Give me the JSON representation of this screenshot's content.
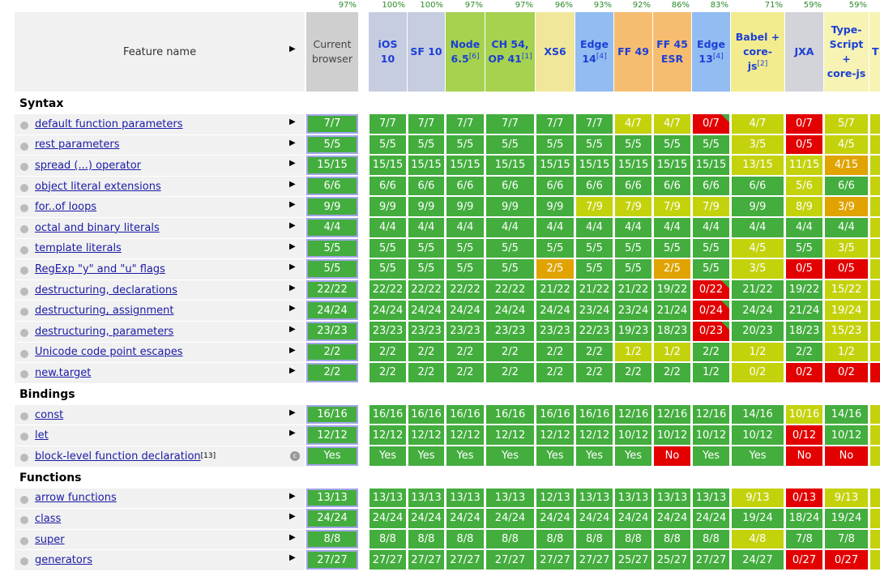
{
  "header": {
    "feature_label": "Feature name"
  },
  "palette": {
    "g": "#43ad3e",
    "l": "#c4d20c",
    "o": "#e0a300",
    "r": "#e20000",
    "R": "#e20000"
  },
  "columns": [
    {
      "name": "Current browser",
      "percent": "97%",
      "color": "#cfcfcf"
    },
    {
      "name": "iOS 10",
      "percent": "100%",
      "color": "#c7cde0"
    },
    {
      "name": "SF 10",
      "percent": "100%",
      "color": "#c7cde0"
    },
    {
      "name": "Node 6.5",
      "note": "[6]",
      "percent": "97%",
      "color": "#a6d24f"
    },
    {
      "name": "CH 54, OP 41",
      "note": "[1]",
      "percent": "97%",
      "color": "#a6d24f"
    },
    {
      "name": "XS6",
      "percent": "96%",
      "color": "#f0e79a"
    },
    {
      "name": "Edge 14",
      "note": "[4]",
      "percent": "93%",
      "color": "#92bcf2"
    },
    {
      "name": "FF 49",
      "percent": "92%",
      "color": "#f6bd70"
    },
    {
      "name": "FF 45 ESR",
      "percent": "86%",
      "color": "#f6bd70"
    },
    {
      "name": "Edge 13",
      "note": "[4]",
      "percent": "83%",
      "color": "#92bcf2"
    },
    {
      "name": "Babel + core-js",
      "note": "[2]",
      "percent": "71%",
      "color": "#f2ec8e"
    },
    {
      "name": "JXA",
      "percent": "59%",
      "color": "#d3d3da"
    },
    {
      "name": "Type-Script + core-js",
      "percent": "59%",
      "color": "#f6f3b4"
    }
  ],
  "cut_column": {
    "name": "T",
    "color": "#f6f3b4"
  },
  "sections": [
    {
      "title": "Syntax",
      "rows": [
        {
          "feature": "default function parameters",
          "cells": [
            "7/7",
            "7/7",
            "7/7",
            "7/7",
            "7/7",
            "7/7",
            "7/7",
            "4/7",
            "4/7",
            "0/7",
            "4/7",
            "0/7",
            "5/7"
          ],
          "levels": "gggggggllRlrll"
        },
        {
          "feature": "rest parameters",
          "cells": [
            "5/5",
            "5/5",
            "5/5",
            "5/5",
            "5/5",
            "5/5",
            "5/5",
            "5/5",
            "5/5",
            "5/5",
            "3/5",
            "0/5",
            "4/5"
          ],
          "levels": "gggggggggglrll"
        },
        {
          "feature": "spread (...) operator",
          "cells": [
            "15/15",
            "15/15",
            "15/15",
            "15/15",
            "15/15",
            "15/15",
            "15/15",
            "15/15",
            "15/15",
            "15/15",
            "13/15",
            "11/15",
            "4/15"
          ],
          "levels": "ggggggggggllol"
        },
        {
          "feature": "object literal extensions",
          "cells": [
            "6/6",
            "6/6",
            "6/6",
            "6/6",
            "6/6",
            "6/6",
            "6/6",
            "6/6",
            "6/6",
            "6/6",
            "6/6",
            "5/6",
            "6/6"
          ],
          "levels": "ggggggggggglgl"
        },
        {
          "feature": "for..of loops",
          "cells": [
            "9/9",
            "9/9",
            "9/9",
            "9/9",
            "9/9",
            "9/9",
            "7/9",
            "7/9",
            "7/9",
            "7/9",
            "9/9",
            "8/9",
            "3/9"
          ],
          "levels": "ggggggllllglol"
        },
        {
          "feature": "octal and binary literals",
          "cells": [
            "4/4",
            "4/4",
            "4/4",
            "4/4",
            "4/4",
            "4/4",
            "4/4",
            "4/4",
            "4/4",
            "4/4",
            "4/4",
            "4/4",
            "4/4"
          ],
          "levels": "gggggggggggggl"
        },
        {
          "feature": "template literals",
          "cells": [
            "5/5",
            "5/5",
            "5/5",
            "5/5",
            "5/5",
            "5/5",
            "5/5",
            "5/5",
            "5/5",
            "5/5",
            "4/5",
            "5/5",
            "3/5"
          ],
          "levels": "gggggggggglgll"
        },
        {
          "feature": "RegExp \"y\" and \"u\" flags",
          "cells": [
            "5/5",
            "5/5",
            "5/5",
            "5/5",
            "5/5",
            "2/5",
            "5/5",
            "5/5",
            "2/5",
            "5/5",
            "3/5",
            "0/5",
            "0/5"
          ],
          "levels": "gggggoggoglrrl"
        },
        {
          "feature": "destructuring, declarations",
          "cells": [
            "22/22",
            "22/22",
            "22/22",
            "22/22",
            "22/22",
            "21/22",
            "21/22",
            "21/22",
            "19/22",
            "0/22",
            "21/22",
            "19/22",
            "15/22"
          ],
          "levels": "gggggggggRggll"
        },
        {
          "feature": "destructuring, assignment",
          "cells": [
            "24/24",
            "24/24",
            "24/24",
            "24/24",
            "24/24",
            "24/24",
            "23/24",
            "23/24",
            "21/24",
            "0/24",
            "24/24",
            "21/24",
            "19/24"
          ],
          "levels": "gggggggggRggll"
        },
        {
          "feature": "destructuring, parameters",
          "cells": [
            "23/23",
            "23/23",
            "23/23",
            "23/23",
            "23/23",
            "23/23",
            "22/23",
            "19/23",
            "18/23",
            "0/23",
            "20/23",
            "18/23",
            "15/23"
          ],
          "levels": "gggggggggRggll"
        },
        {
          "feature": "Unicode code point escapes",
          "cells": [
            "2/2",
            "2/2",
            "2/2",
            "2/2",
            "2/2",
            "2/2",
            "2/2",
            "1/2",
            "1/2",
            "2/2",
            "1/2",
            "2/2",
            "1/2"
          ],
          "levels": "gggggggllglgll"
        },
        {
          "feature": "new.target",
          "cells": [
            "2/2",
            "2/2",
            "2/2",
            "2/2",
            "2/2",
            "2/2",
            "2/2",
            "2/2",
            "2/2",
            "1/2",
            "0/2",
            "0/2",
            "0/2"
          ],
          "levels": "gggggggggglrrrl"
        }
      ]
    },
    {
      "title": "Bindings",
      "rows": [
        {
          "feature": "const",
          "cells": [
            "16/16",
            "16/16",
            "16/16",
            "16/16",
            "16/16",
            "16/16",
            "16/16",
            "12/16",
            "12/16",
            "12/16",
            "14/16",
            "10/16",
            "14/16"
          ],
          "levels": "ggggggggggglgl"
        },
        {
          "feature": "let",
          "cells": [
            "12/12",
            "12/12",
            "12/12",
            "12/12",
            "12/12",
            "12/12",
            "12/12",
            "10/12",
            "10/12",
            "10/12",
            "10/12",
            "0/12",
            "10/12"
          ],
          "levels": "gggggggggggrgl"
        },
        {
          "feature": "block-level function declaration",
          "note": "[13]",
          "cells": [
            "Yes",
            "Yes",
            "Yes",
            "Yes",
            "Yes",
            "Yes",
            "Yes",
            "Yes",
            "No",
            "Yes",
            "Yes",
            "No",
            "No"
          ],
          "levels": "ggggggggrggrrl"
        }
      ]
    },
    {
      "title": "Functions",
      "rows": [
        {
          "feature": "arrow functions",
          "cells": [
            "13/13",
            "13/13",
            "13/13",
            "13/13",
            "13/13",
            "12/13",
            "13/13",
            "13/13",
            "13/13",
            "13/13",
            "9/13",
            "0/13",
            "9/13"
          ],
          "levels": "gggggggggglrll"
        },
        {
          "feature": "class",
          "cells": [
            "24/24",
            "24/24",
            "24/24",
            "24/24",
            "24/24",
            "24/24",
            "24/24",
            "24/24",
            "24/24",
            "24/24",
            "19/24",
            "18/24",
            "19/24"
          ],
          "levels": "gggggggggggggl"
        },
        {
          "feature": "super",
          "cells": [
            "8/8",
            "8/8",
            "8/8",
            "8/8",
            "8/8",
            "8/8",
            "8/8",
            "8/8",
            "8/8",
            "8/8",
            "4/8",
            "7/8",
            "7/8"
          ],
          "levels": "gggggggggglggl"
        },
        {
          "feature": "generators",
          "cells": [
            "27/27",
            "27/27",
            "27/27",
            "27/27",
            "27/27",
            "27/27",
            "27/27",
            "25/27",
            "25/27",
            "27/27",
            "24/27",
            "0/27",
            "0/27"
          ],
          "levels": "gggggggggggrrl"
        }
      ]
    }
  ]
}
